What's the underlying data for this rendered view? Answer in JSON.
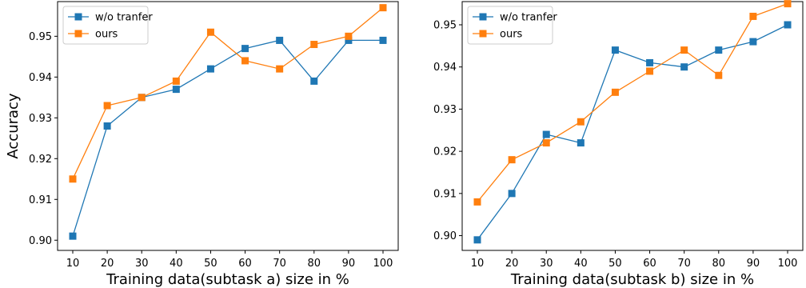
{
  "chart_data": [
    {
      "type": "line",
      "xlabel": "Training data(subtask a) size in %",
      "ylabel": "Accuracy",
      "x": [
        10,
        20,
        30,
        40,
        50,
        60,
        70,
        80,
        90,
        100
      ],
      "xticks": [
        "10",
        "20",
        "30",
        "40",
        "50",
        "60",
        "70",
        "80",
        "90",
        "100"
      ],
      "yticks": [
        "0.90",
        "0.91",
        "0.92",
        "0.93",
        "0.94",
        "0.95"
      ],
      "ylim": [
        0.8975,
        0.9585
      ],
      "grid": false,
      "legend_position": "top-left",
      "series": [
        {
          "name": "w/o tranfer",
          "color": "#1f77b4",
          "marker": "square",
          "values": [
            0.901,
            0.928,
            0.935,
            0.937,
            0.942,
            0.947,
            0.949,
            0.939,
            0.949,
            0.949
          ]
        },
        {
          "name": "ours",
          "color": "#ff7f0e",
          "marker": "square",
          "values": [
            0.915,
            0.933,
            0.935,
            0.939,
            0.951,
            0.944,
            0.942,
            0.948,
            0.95,
            0.957
          ]
        }
      ]
    },
    {
      "type": "line",
      "xlabel": "Training data(subtask b) size in %",
      "ylabel": "",
      "x": [
        10,
        20,
        30,
        40,
        50,
        60,
        70,
        80,
        90,
        100
      ],
      "xticks": [
        "10",
        "20",
        "30",
        "40",
        "50",
        "60",
        "70",
        "80",
        "90",
        "100"
      ],
      "yticks": [
        "0.90",
        "0.91",
        "0.92",
        "0.93",
        "0.94",
        "0.95"
      ],
      "ylim": [
        0.8965,
        0.9555
      ],
      "grid": false,
      "legend_position": "top-left",
      "series": [
        {
          "name": "w/o tranfer",
          "color": "#1f77b4",
          "marker": "square",
          "values": [
            0.899,
            0.91,
            0.924,
            0.922,
            0.944,
            0.941,
            0.94,
            0.944,
            0.946,
            0.95
          ]
        },
        {
          "name": "ours",
          "color": "#ff7f0e",
          "marker": "square",
          "values": [
            0.908,
            0.918,
            0.922,
            0.927,
            0.934,
            0.939,
            0.944,
            0.938,
            0.952,
            0.955
          ]
        }
      ]
    }
  ]
}
